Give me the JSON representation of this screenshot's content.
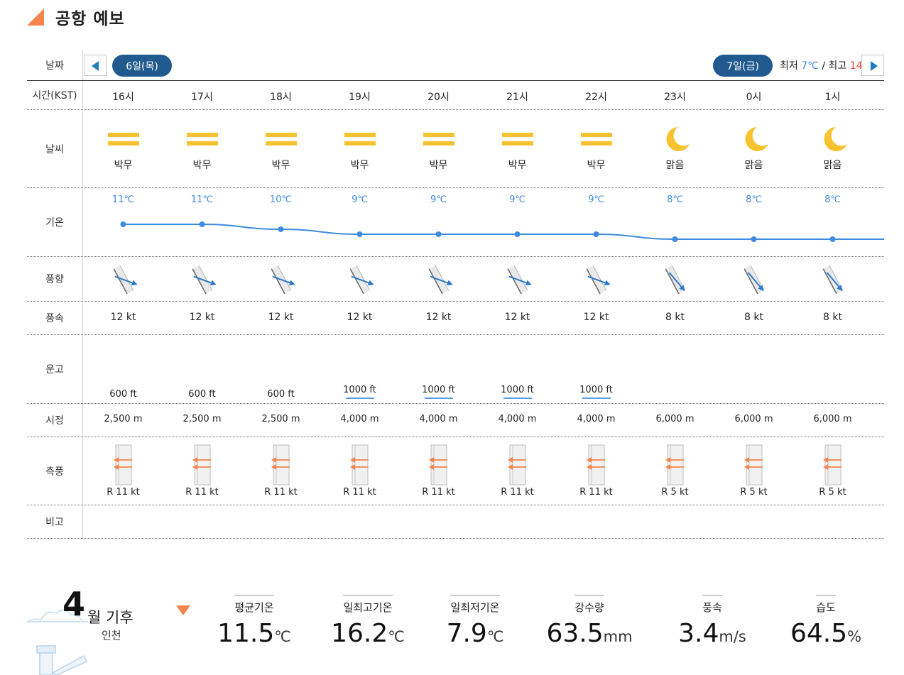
{
  "title": "공항 예보",
  "row_labels": {
    "date": "날짜",
    "time": "시간(KST)",
    "weather": "날씨",
    "temp": "기온",
    "wind_dir": "풍향",
    "wind_speed": "풍속",
    "ceiling": "운고",
    "visibility": "시정",
    "crosswind": "측풍",
    "remarks": "비고"
  },
  "dates": {
    "first": "6일(목)",
    "second": "7일(금)",
    "min_label": "최저",
    "min_value": "7℃",
    "separator": "/",
    "max_label": "최고",
    "max_value": "14"
  },
  "hours": [
    {
      "time": "16시",
      "weather": "박무",
      "icon": "haze-icon",
      "temp": "11℃",
      "temp_value": 11,
      "wind_dir_deg": 290,
      "wind_speed": "12 kt",
      "ceiling": "600 ft",
      "ceiling_marked": false,
      "visibility": "2,500 m",
      "crosswind": "R 11 kt"
    },
    {
      "time": "17시",
      "weather": "박무",
      "icon": "haze-icon",
      "temp": "11℃",
      "temp_value": 11,
      "wind_dir_deg": 290,
      "wind_speed": "12 kt",
      "ceiling": "600 ft",
      "ceiling_marked": false,
      "visibility": "2,500 m",
      "crosswind": "R 11 kt"
    },
    {
      "time": "18시",
      "weather": "박무",
      "icon": "haze-icon",
      "temp": "10℃",
      "temp_value": 10,
      "wind_dir_deg": 290,
      "wind_speed": "12 kt",
      "ceiling": "600 ft",
      "ceiling_marked": false,
      "visibility": "2,500 m",
      "crosswind": "R 11 kt"
    },
    {
      "time": "19시",
      "weather": "박무",
      "icon": "haze-icon",
      "temp": "9℃",
      "temp_value": 9,
      "wind_dir_deg": 290,
      "wind_speed": "12 kt",
      "ceiling": "1000 ft",
      "ceiling_marked": true,
      "visibility": "4,000 m",
      "crosswind": "R 11 kt"
    },
    {
      "time": "20시",
      "weather": "박무",
      "icon": "haze-icon",
      "temp": "9℃",
      "temp_value": 9,
      "wind_dir_deg": 290,
      "wind_speed": "12 kt",
      "ceiling": "1000 ft",
      "ceiling_marked": true,
      "visibility": "4,000 m",
      "crosswind": "R 11 kt"
    },
    {
      "time": "21시",
      "weather": "박무",
      "icon": "haze-icon",
      "temp": "9℃",
      "temp_value": 9,
      "wind_dir_deg": 290,
      "wind_speed": "12 kt",
      "ceiling": "1000 ft",
      "ceiling_marked": true,
      "visibility": "4,000 m",
      "crosswind": "R 11 kt"
    },
    {
      "time": "22시",
      "weather": "박무",
      "icon": "haze-icon",
      "temp": "9℃",
      "temp_value": 9,
      "wind_dir_deg": 290,
      "wind_speed": "12 kt",
      "ceiling": "1000 ft",
      "ceiling_marked": true,
      "visibility": "4,000 m",
      "crosswind": "R 11 kt"
    },
    {
      "time": "23시",
      "weather": "맑음",
      "icon": "moon-icon",
      "temp": "8℃",
      "temp_value": 8,
      "wind_dir_deg": 320,
      "wind_speed": "8 kt",
      "ceiling": "",
      "ceiling_marked": false,
      "visibility": "6,000 m",
      "crosswind": "R 5 kt"
    },
    {
      "time": "0시",
      "weather": "맑음",
      "icon": "moon-icon",
      "temp": "8℃",
      "temp_value": 8,
      "wind_dir_deg": 320,
      "wind_speed": "8 kt",
      "ceiling": "",
      "ceiling_marked": false,
      "visibility": "6,000 m",
      "crosswind": "R 5 kt"
    },
    {
      "time": "1시",
      "weather": "맑음",
      "icon": "moon-icon",
      "temp": "8℃",
      "temp_value": 8,
      "wind_dir_deg": 320,
      "wind_speed": "8 kt",
      "ceiling": "",
      "ceiling_marked": false,
      "visibility": "6,000 m",
      "crosswind": "R 5 kt"
    }
  ],
  "colors": {
    "haze": "#f7c22f",
    "moon": "#f7c22f",
    "temp_line": "#3e8ce0",
    "wind_arrow": "#2a7ac7",
    "crosswind_arrow": "#f5854a",
    "pill": "#205a8e",
    "accent": "#f5854a"
  },
  "climate": {
    "month_num": "4",
    "month_text": "월 기후",
    "city": "인천",
    "stats": [
      {
        "label": "평균기온",
        "value": "11.5",
        "unit": "℃"
      },
      {
        "label": "일최고기온",
        "value": "16.2",
        "unit": "℃"
      },
      {
        "label": "일최저기온",
        "value": "7.9",
        "unit": "℃"
      },
      {
        "label": "강수량",
        "value": "63.5",
        "unit": "mm"
      },
      {
        "label": "풍속",
        "value": "3.4",
        "unit": "m/s"
      },
      {
        "label": "습도",
        "value": "64.5",
        "unit": "%"
      }
    ]
  }
}
